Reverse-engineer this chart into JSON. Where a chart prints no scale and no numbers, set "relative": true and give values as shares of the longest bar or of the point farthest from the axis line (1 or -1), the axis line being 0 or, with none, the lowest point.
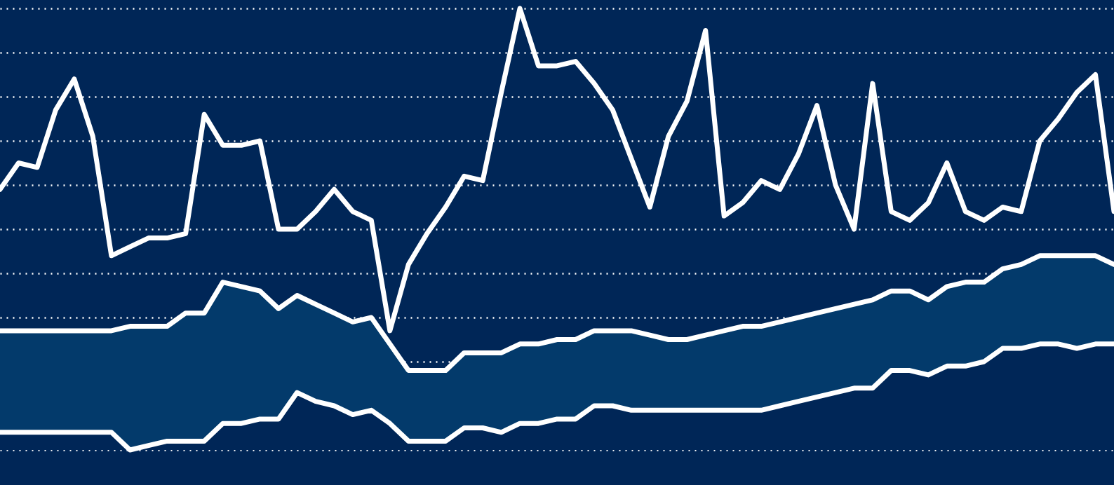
{
  "chart_data": {
    "type": "line",
    "relative": true,
    "grid": "y",
    "line_style": "solid",
    "marker": "none",
    "categories": [
      null,
      null,
      null,
      null,
      null,
      null,
      null,
      null,
      null,
      null,
      null,
      null,
      null,
      null,
      null,
      null,
      null,
      null,
      null,
      null,
      null,
      null,
      null,
      null,
      null,
      null,
      null,
      null,
      null,
      null,
      null,
      null,
      null,
      null,
      null,
      null,
      null,
      null,
      null,
      null,
      null,
      null,
      null,
      null,
      null,
      null,
      null,
      null,
      null,
      null,
      null,
      null,
      null,
      null,
      null,
      null,
      null,
      null,
      null,
      null,
      null
    ],
    "series": [
      {
        "color": "#ffffff",
        "values": [
          0.59,
          0.65,
          0.64,
          0.77,
          0.84,
          0.71,
          0.44,
          0.46,
          0.48,
          0.48,
          0.49,
          0.76,
          0.69,
          0.69,
          0.7,
          0.5,
          0.5,
          0.54,
          0.59,
          0.54,
          0.52,
          0.27,
          0.42,
          0.49,
          0.55,
          0.62,
          0.61,
          0.81,
          1,
          0.87,
          0.87,
          0.88,
          0.83,
          0.77,
          0.66,
          0.55,
          0.71,
          0.79,
          0.95,
          0.53,
          0.56,
          0.61,
          0.59,
          0.67,
          0.78,
          0.6,
          0.5,
          0.83,
          0.54,
          0.52,
          0.56,
          0.65,
          0.54,
          0.52,
          0.55,
          0.54,
          0.7,
          0.75,
          0.81,
          0.85,
          0.54
        ]
      },
      {
        "type": "area",
        "color": "#033a6b",
        "values": [
          0.27,
          0.27,
          0.27,
          0.27,
          0.27,
          0.27,
          0.27,
          0.28,
          0.28,
          0.28,
          0.31,
          0.31,
          0.38,
          0.37,
          0.36,
          0.32,
          0.35,
          0.33,
          0.31,
          0.29,
          0.3,
          0.24,
          0.18,
          0.18,
          0.18,
          0.22,
          0.22,
          0.22,
          0.24,
          0.24,
          0.25,
          0.25,
          0.27,
          0.27,
          0.27,
          0.26,
          0.25,
          0.25,
          0.26,
          0.27,
          0.28,
          0.28,
          0.29,
          0.3,
          0.31,
          0.32,
          0.33,
          0.34,
          0.36,
          0.36,
          0.34,
          0.37,
          0.38,
          0.38,
          0.41,
          0.42,
          0.44,
          0.44,
          0.44,
          0.44,
          0.42
        ]
      },
      {
        "type": "area",
        "color": "#002657",
        "values": [
          0.04,
          0.04,
          0.04,
          0.04,
          0.04,
          0.04,
          0.04,
          0,
          0.01,
          0.02,
          0.02,
          0.02,
          0.06,
          0.06,
          0.07,
          0.07,
          0.13,
          0.11,
          0.1,
          0.08,
          0.09,
          0.06,
          0.02,
          0.02,
          0.02,
          0.05,
          0.05,
          0.04,
          0.06,
          0.06,
          0.07,
          0.07,
          0.1,
          0.1,
          0.09,
          0.09,
          0.09,
          0.09,
          0.09,
          0.09,
          0.09,
          0.09,
          0.1,
          0.11,
          0.12,
          0.13,
          0.14,
          0.14,
          0.18,
          0.18,
          0.17,
          0.19,
          0.19,
          0.2,
          0.23,
          0.23,
          0.24,
          0.24,
          0.23,
          0.24,
          0.24
        ]
      }
    ]
  }
}
